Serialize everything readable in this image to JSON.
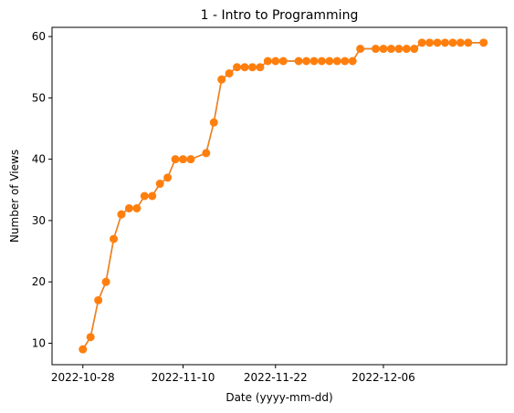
{
  "chart_data": {
    "type": "line",
    "title": "1 - Intro to Programming",
    "xlabel": "Date (yyyy-mm-dd)",
    "ylabel": "Number of Views",
    "x_ticks": [
      "2022-10-28",
      "2022-11-10",
      "2022-11-22",
      "2022-12-06"
    ],
    "y_ticks": [
      10,
      20,
      30,
      40,
      50,
      60
    ],
    "xlim": [
      "2022-10-24",
      "2022-12-22"
    ],
    "ylim": [
      6.5,
      61.5
    ],
    "grid": false,
    "colors": {
      "line": "#1f77b4",
      "marker": "#ff7f0e"
    },
    "series": [
      {
        "x": [
          "2022-10-28",
          "2022-10-29",
          "2022-10-30",
          "2022-10-31",
          "2022-11-01",
          "2022-11-02",
          "2022-11-03",
          "2022-11-04",
          "2022-11-05",
          "2022-11-06",
          "2022-11-07",
          "2022-11-08",
          "2022-11-09",
          "2022-11-10",
          "2022-11-11",
          "2022-11-13",
          "2022-11-14",
          "2022-11-15",
          "2022-11-16",
          "2022-11-17",
          "2022-11-18",
          "2022-11-19",
          "2022-11-20",
          "2022-11-21",
          "2022-11-22",
          "2022-11-23",
          "2022-11-25",
          "2022-11-26",
          "2022-11-27",
          "2022-11-28",
          "2022-11-29",
          "2022-11-30",
          "2022-12-01",
          "2022-12-02",
          "2022-12-03",
          "2022-12-05",
          "2022-12-06",
          "2022-12-07",
          "2022-12-08",
          "2022-12-09",
          "2022-12-10",
          "2022-12-11",
          "2022-12-12",
          "2022-12-13",
          "2022-12-14",
          "2022-12-15",
          "2022-12-16",
          "2022-12-17",
          "2022-12-19"
        ],
        "values": [
          9,
          11,
          17,
          20,
          27,
          31,
          32,
          32,
          34,
          34,
          36,
          37,
          40,
          40,
          40,
          41,
          46,
          53,
          54,
          55,
          55,
          55,
          55,
          56,
          56,
          56,
          56,
          56,
          56,
          56,
          56,
          56,
          56,
          56,
          58,
          58,
          58,
          58,
          58,
          58,
          58,
          59,
          59,
          59,
          59,
          59,
          59,
          59,
          59
        ]
      }
    ]
  }
}
